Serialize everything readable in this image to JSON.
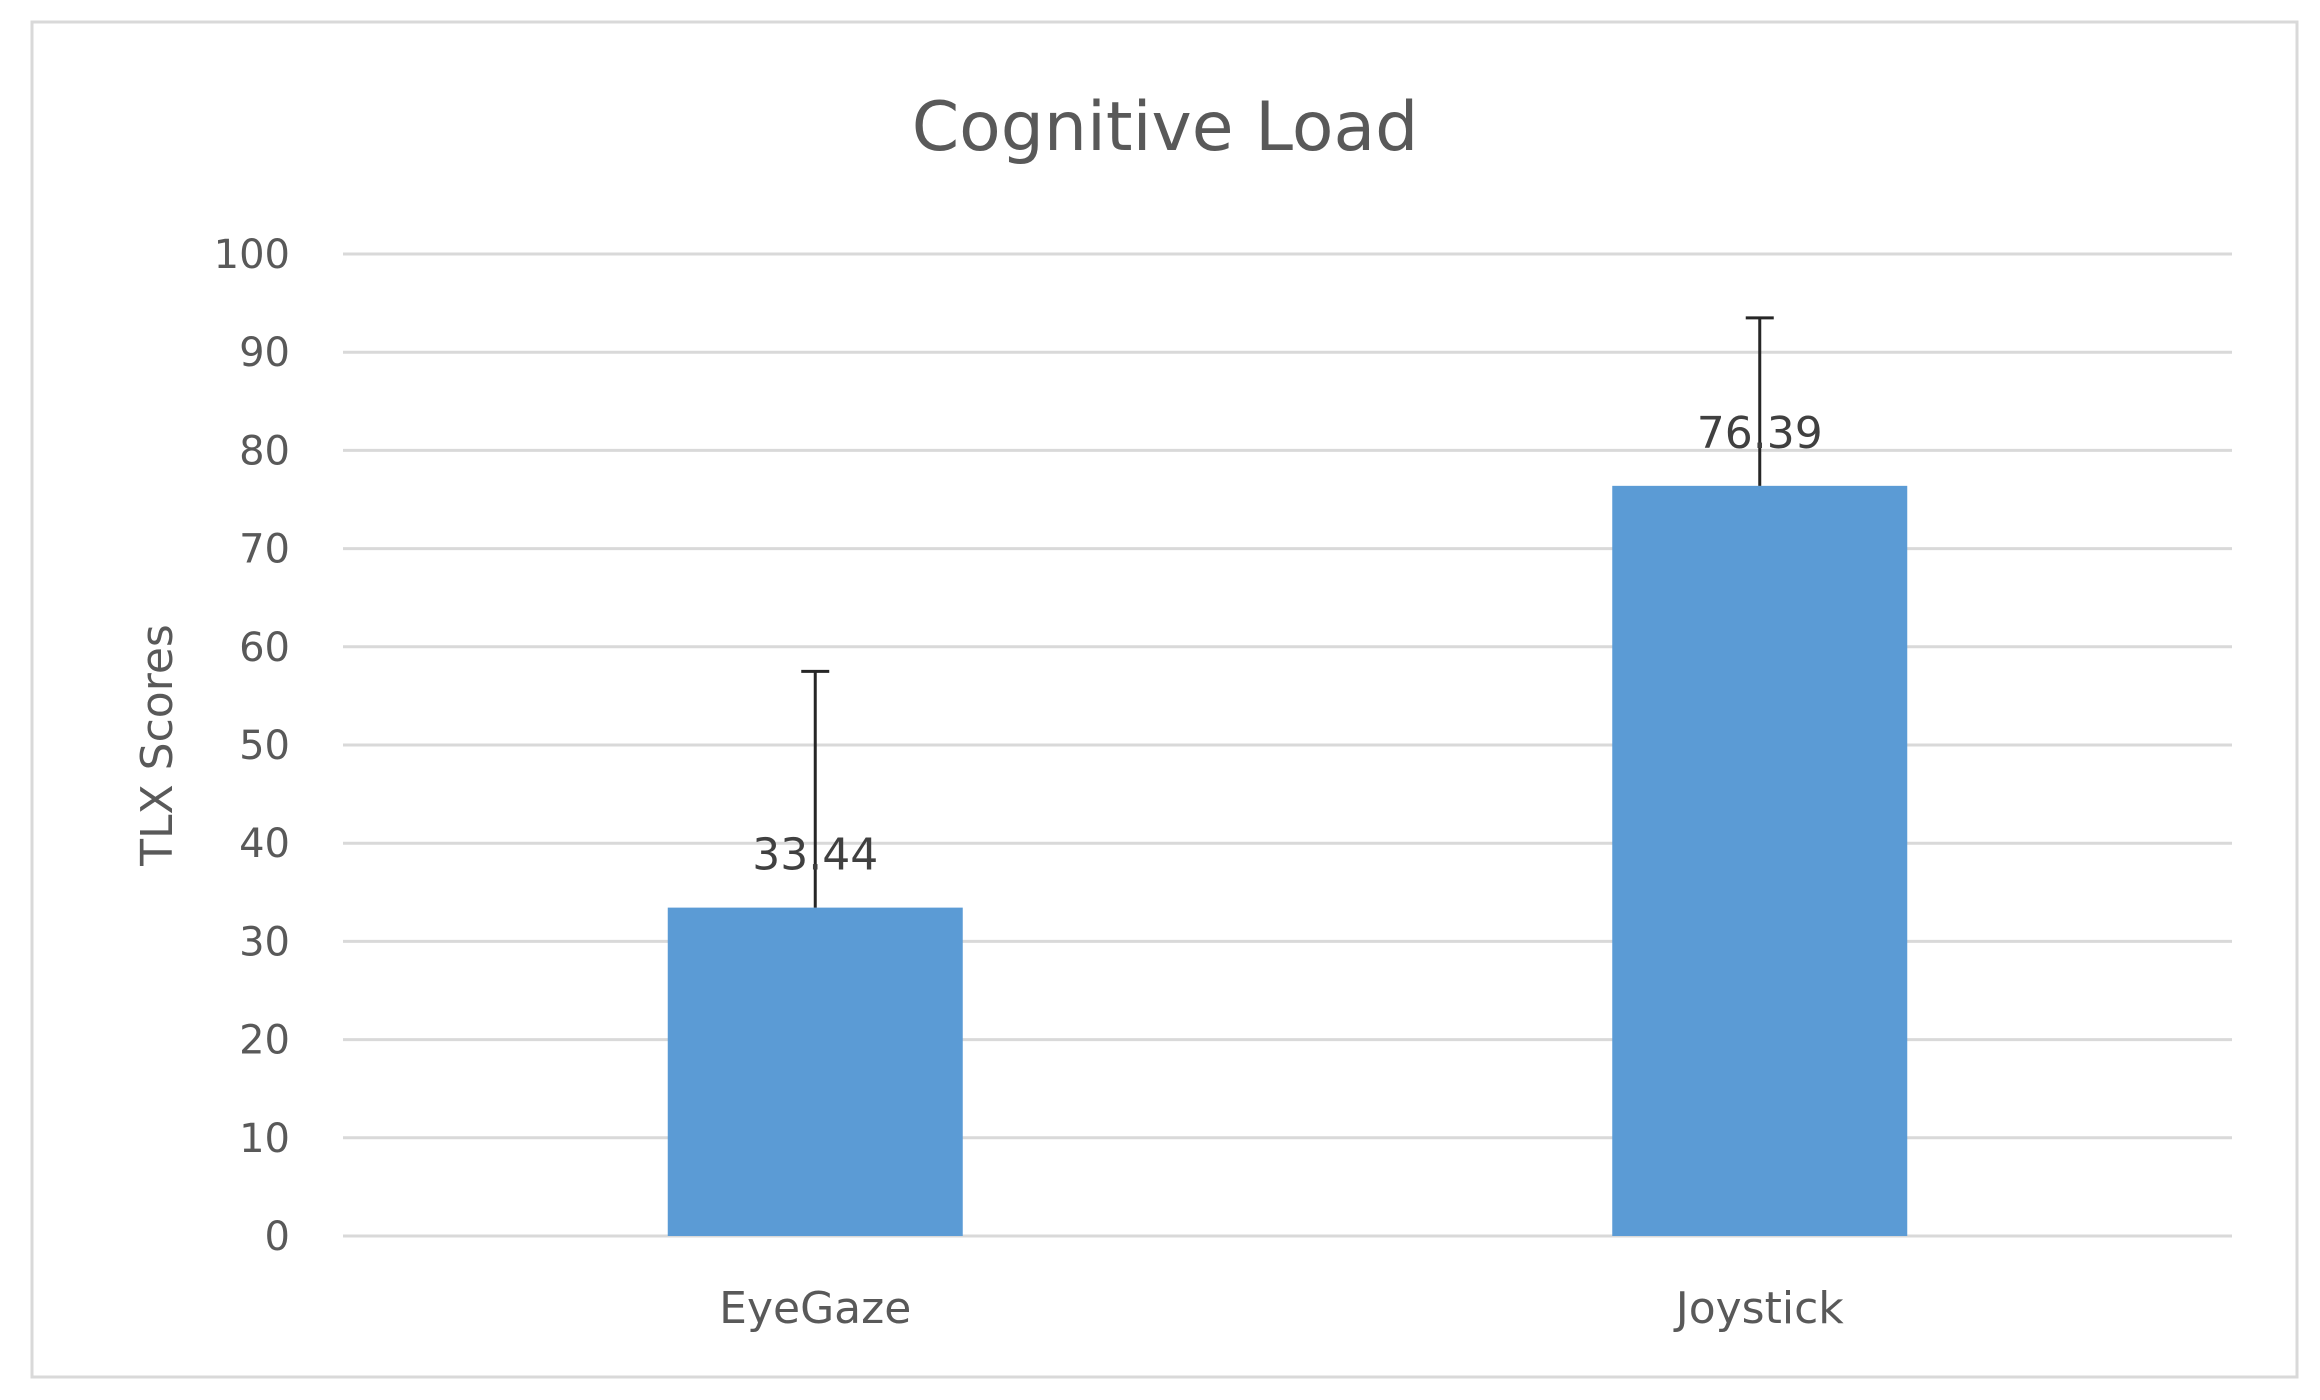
{
  "chart_data": {
    "type": "bar",
    "title": "Cognitive Load",
    "xlabel": "",
    "ylabel": "TLX Scores",
    "categories": [
      "EyeGaze",
      "Joystick"
    ],
    "values": [
      33.44,
      76.39
    ],
    "error_upper": [
      57.5,
      93.5
    ],
    "data_labels": [
      "33.44",
      "76.39"
    ],
    "ylim": [
      0,
      100
    ],
    "yticks": [
      0,
      10,
      20,
      30,
      40,
      50,
      60,
      70,
      80,
      90,
      100
    ],
    "ytick_labels": [
      "0",
      "10",
      "20",
      "30",
      "40",
      "50",
      "60",
      "70",
      "80",
      "90",
      "100"
    ],
    "grid": true,
    "legend": "none",
    "bar_color": "#5b9bd5",
    "error_bar_color": "#262626"
  }
}
